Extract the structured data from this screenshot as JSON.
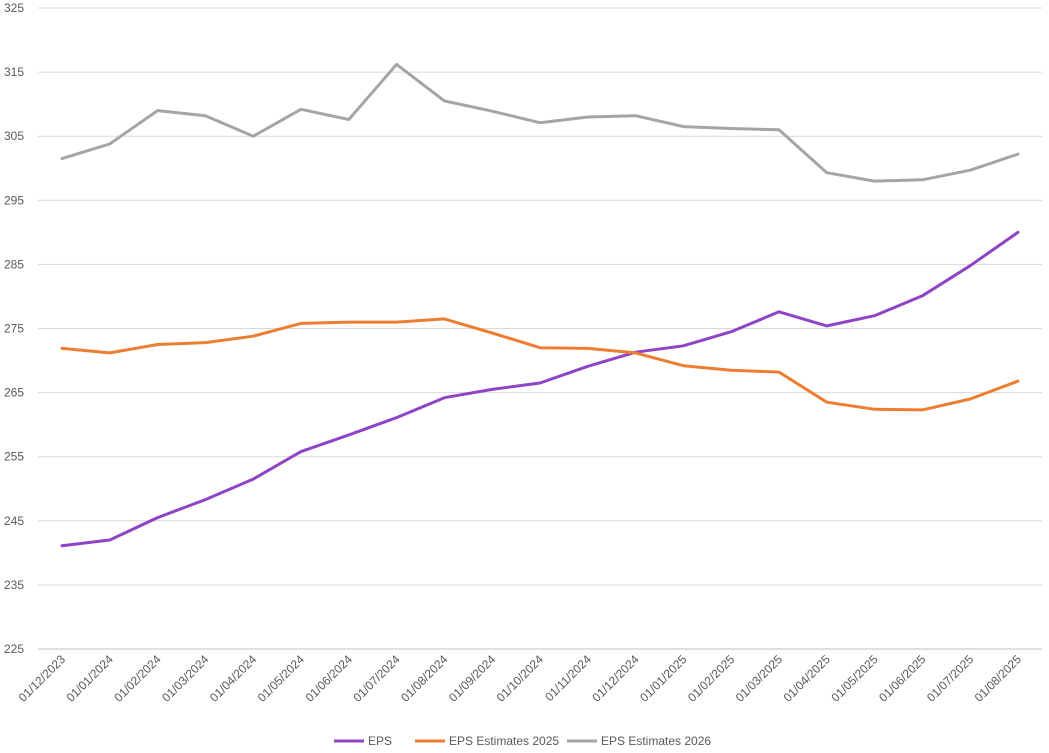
{
  "chart_data": {
    "type": "line",
    "title": "",
    "xlabel": "",
    "ylabel": "",
    "ylim": [
      225,
      325
    ],
    "yticks": [
      225,
      235,
      245,
      255,
      265,
      275,
      285,
      295,
      305,
      315,
      325
    ],
    "grid": true,
    "legend_position": "bottom",
    "categories": [
      "01/12/2023",
      "01/01/2024",
      "01/02/2024",
      "01/03/2024",
      "01/04/2024",
      "01/05/2024",
      "01/06/2024",
      "01/07/2024",
      "01/08/2024",
      "01/09/2024",
      "01/10/2024",
      "01/11/2024",
      "01/12/2024",
      "01/01/2025",
      "01/02/2025",
      "01/03/2025",
      "01/04/2025",
      "01/05/2025",
      "01/06/2025",
      "01/07/2025",
      "01/08/2025"
    ],
    "series": [
      {
        "name": "EPS",
        "color": "#8e44c4",
        "values": [
          241.1,
          242.0,
          245.5,
          248.3,
          251.5,
          255.8,
          258.4,
          261.1,
          264.2,
          265.5,
          266.5,
          269.1,
          271.3,
          272.3,
          274.5,
          277.6,
          275.4,
          277.0,
          280.1,
          284.8,
          290.0
        ]
      },
      {
        "name": "EPS Estimates 2025",
        "color": "#ed7d31",
        "values": [
          271.9,
          271.2,
          272.5,
          272.8,
          273.8,
          275.8,
          276.0,
          276.0,
          276.5,
          274.3,
          272.0,
          271.9,
          271.2,
          269.2,
          268.5,
          268.2,
          263.5,
          262.4,
          262.3,
          264.0,
          266.8
        ]
      },
      {
        "name": "EPS Estimates 2026",
        "color": "#a5a5a5",
        "values": [
          301.5,
          303.8,
          309.0,
          308.2,
          305.0,
          309.2,
          307.6,
          316.2,
          310.5,
          308.9,
          307.1,
          308.0,
          308.2,
          306.5,
          306.2,
          306.0,
          299.3,
          298.0,
          298.2,
          299.7,
          302.2
        ]
      }
    ]
  }
}
